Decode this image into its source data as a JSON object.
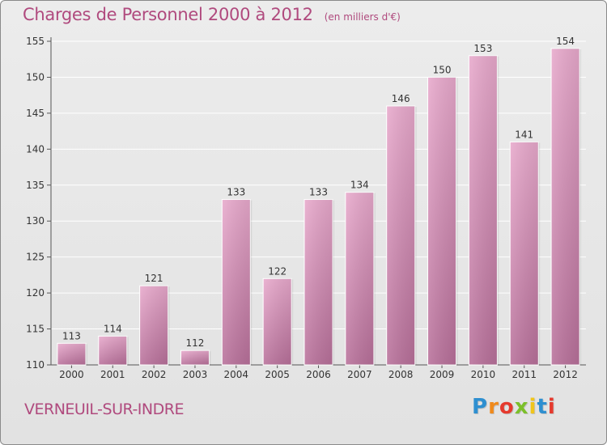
{
  "header": {
    "title": "Charges de Personnel 2000 à 2012",
    "subtitle": "(en milliers d'€)"
  },
  "footer": {
    "commune": "VERNEUIL-SUR-INDRE",
    "brand": "Proxiti",
    "brand_letters": [
      {
        "char": "P",
        "color": "#2e8fd0"
      },
      {
        "char": "r",
        "color": "#f08a1c"
      },
      {
        "char": "o",
        "color": "#e53a2e"
      },
      {
        "char": "x",
        "color": "#7cbf2a"
      },
      {
        "char": "i",
        "color": "#f0c51c"
      },
      {
        "char": "t",
        "color": "#2e8fd0"
      },
      {
        "char": "i",
        "color": "#e53a2e"
      }
    ]
  },
  "colors": {
    "bar_light": "#e8a9cc",
    "bar_dark": "#b8709a",
    "title": "#b04a7e"
  },
  "chart_data": {
    "type": "bar",
    "title": "Charges de Personnel 2000 à 2012",
    "subtitle": "(en milliers d'€)",
    "categories": [
      "2000",
      "2001",
      "2002",
      "2003",
      "2004",
      "2005",
      "2006",
      "2007",
      "2008",
      "2009",
      "2010",
      "2011",
      "2012"
    ],
    "values": [
      113,
      114,
      121,
      112,
      133,
      122,
      133,
      134,
      146,
      150,
      153,
      141,
      154
    ],
    "ylim": [
      110,
      155
    ],
    "yticks": [
      110,
      115,
      120,
      125,
      130,
      135,
      140,
      145,
      150,
      155
    ],
    "grid": true,
    "legend": "none"
  }
}
